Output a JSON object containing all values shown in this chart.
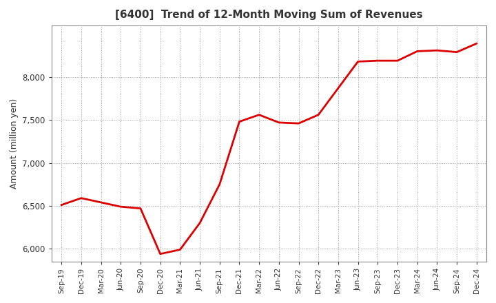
{
  "title": "[6400]  Trend of 12-Month Moving Sum of Revenues",
  "ylabel": "Amount (million yen)",
  "line_color": "#dd0000",
  "background_color": "#ffffff",
  "plot_bg_color": "#ffffff",
  "grid_color": "#999999",
  "x_labels": [
    "Sep-19",
    "Dec-19",
    "Mar-20",
    "Jun-20",
    "Sep-20",
    "Dec-20",
    "Mar-21",
    "Jun-21",
    "Sep-21",
    "Dec-21",
    "Mar-22",
    "Jun-22",
    "Sep-22",
    "Dec-22",
    "Mar-23",
    "Jun-23",
    "Sep-23",
    "Dec-23",
    "Mar-24",
    "Jun-24",
    "Sep-24",
    "Dec-24"
  ],
  "values": [
    6510,
    6590,
    6540,
    6490,
    6470,
    5940,
    5990,
    6300,
    6750,
    7480,
    7560,
    7470,
    7460,
    7560,
    7870,
    8180,
    8190,
    8190,
    8300,
    8310,
    8290,
    8390
  ],
  "ylim": [
    5850,
    8600
  ],
  "yticks": [
    6000,
    6500,
    7000,
    7500,
    8000
  ],
  "linewidth": 2.0,
  "title_color": "#333333",
  "tick_color": "#333333"
}
